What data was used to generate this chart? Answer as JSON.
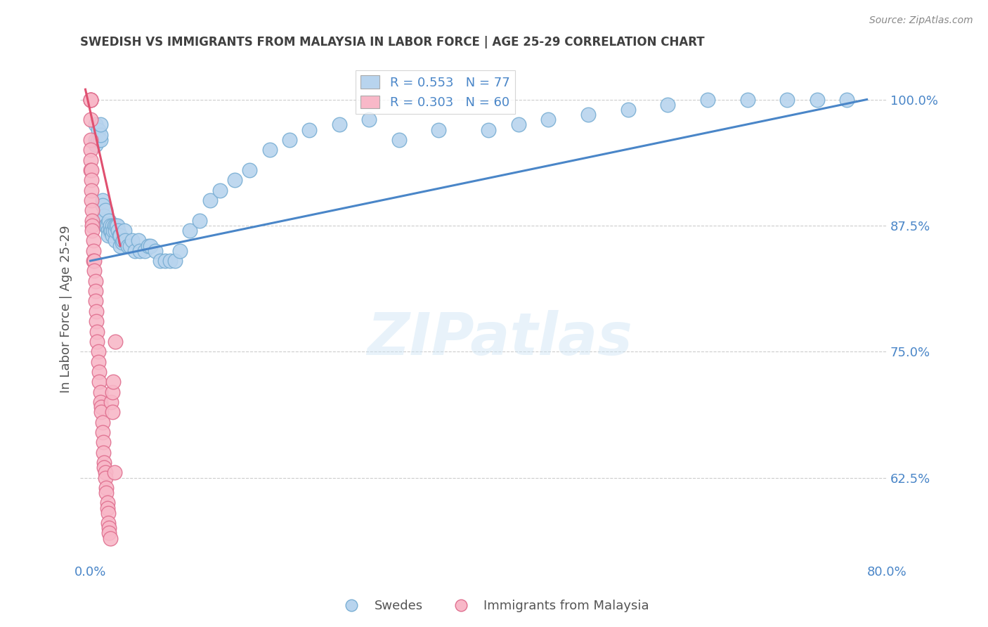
{
  "title": "SWEDISH VS IMMIGRANTS FROM MALAYSIA IN LABOR FORCE | AGE 25-29 CORRELATION CHART",
  "source": "Source: ZipAtlas.com",
  "ylabel": "In Labor Force | Age 25-29",
  "ytick_labels": [
    "100.0%",
    "87.5%",
    "75.0%",
    "62.5%"
  ],
  "ytick_values": [
    1.0,
    0.875,
    0.75,
    0.625
  ],
  "xmin": -0.01,
  "xmax": 0.8,
  "ymin": 0.545,
  "ymax": 1.04,
  "legend_blue_label": "R = 0.553   N = 77",
  "legend_pink_label": "R = 0.303   N = 60",
  "watermark": "ZIPatlas",
  "swedes_color": "#b8d4ee",
  "swedes_edge_color": "#7aafd4",
  "malaysia_color": "#f8b8c8",
  "malaysia_edge_color": "#e07090",
  "trendline_blue_color": "#4a86c8",
  "trendline_pink_color": "#e05070",
  "title_color": "#404040",
  "axis_label_color": "#4a86c8",
  "swedes_x": [
    0.005,
    0.005,
    0.005,
    0.008,
    0.008,
    0.01,
    0.01,
    0.01,
    0.012,
    0.012,
    0.013,
    0.014,
    0.015,
    0.015,
    0.016,
    0.017,
    0.018,
    0.018,
    0.019,
    0.02,
    0.02,
    0.021,
    0.022,
    0.022,
    0.023,
    0.024,
    0.025,
    0.025,
    0.026,
    0.027,
    0.028,
    0.029,
    0.03,
    0.03,
    0.032,
    0.033,
    0.034,
    0.035,
    0.038,
    0.04,
    0.042,
    0.045,
    0.048,
    0.05,
    0.055,
    0.058,
    0.06,
    0.065,
    0.07,
    0.075,
    0.08,
    0.085,
    0.09,
    0.1,
    0.11,
    0.12,
    0.13,
    0.145,
    0.16,
    0.18,
    0.2,
    0.22,
    0.25,
    0.28,
    0.31,
    0.35,
    0.4,
    0.43,
    0.46,
    0.5,
    0.54,
    0.58,
    0.62,
    0.66,
    0.7,
    0.73,
    0.76
  ],
  "swedes_y": [
    0.96,
    0.975,
    0.955,
    0.96,
    0.97,
    0.96,
    0.965,
    0.975,
    0.9,
    0.895,
    0.88,
    0.885,
    0.89,
    0.875,
    0.875,
    0.875,
    0.87,
    0.865,
    0.88,
    0.87,
    0.875,
    0.87,
    0.875,
    0.865,
    0.87,
    0.875,
    0.86,
    0.87,
    0.875,
    0.875,
    0.87,
    0.865,
    0.855,
    0.865,
    0.858,
    0.86,
    0.87,
    0.86,
    0.855,
    0.855,
    0.86,
    0.85,
    0.86,
    0.85,
    0.85,
    0.855,
    0.855,
    0.85,
    0.84,
    0.84,
    0.84,
    0.84,
    0.85,
    0.87,
    0.88,
    0.9,
    0.91,
    0.92,
    0.93,
    0.95,
    0.96,
    0.97,
    0.975,
    0.98,
    0.96,
    0.97,
    0.97,
    0.975,
    0.98,
    0.985,
    0.99,
    0.995,
    1.0,
    1.0,
    1.0,
    1.0,
    1.0
  ],
  "malaysia_x": [
    0.0,
    0.0,
    0.0,
    0.0,
    0.0,
    0.0,
    0.0,
    0.0,
    0.0,
    0.001,
    0.001,
    0.001,
    0.001,
    0.002,
    0.002,
    0.002,
    0.002,
    0.003,
    0.003,
    0.003,
    0.004,
    0.004,
    0.005,
    0.005,
    0.005,
    0.006,
    0.006,
    0.007,
    0.007,
    0.008,
    0.008,
    0.009,
    0.009,
    0.01,
    0.01,
    0.011,
    0.011,
    0.012,
    0.012,
    0.013,
    0.013,
    0.014,
    0.014,
    0.015,
    0.015,
    0.016,
    0.016,
    0.017,
    0.017,
    0.018,
    0.018,
    0.019,
    0.019,
    0.02,
    0.021,
    0.022,
    0.022,
    0.023,
    0.024,
    0.025
  ],
  "malaysia_y": [
    1.0,
    1.0,
    1.0,
    1.0,
    0.98,
    0.96,
    0.95,
    0.94,
    0.93,
    0.93,
    0.92,
    0.91,
    0.9,
    0.89,
    0.88,
    0.875,
    0.87,
    0.86,
    0.85,
    0.84,
    0.84,
    0.83,
    0.82,
    0.81,
    0.8,
    0.79,
    0.78,
    0.77,
    0.76,
    0.75,
    0.74,
    0.73,
    0.72,
    0.71,
    0.7,
    0.695,
    0.69,
    0.68,
    0.67,
    0.66,
    0.65,
    0.64,
    0.635,
    0.63,
    0.625,
    0.615,
    0.61,
    0.6,
    0.595,
    0.59,
    0.58,
    0.575,
    0.57,
    0.565,
    0.7,
    0.69,
    0.71,
    0.72,
    0.63,
    0.76
  ],
  "blue_trend_x": [
    0.0,
    0.78
  ],
  "blue_trend_y": [
    0.84,
    1.0
  ],
  "pink_trend_x": [
    -0.005,
    0.03
  ],
  "pink_trend_y": [
    1.01,
    0.855
  ]
}
